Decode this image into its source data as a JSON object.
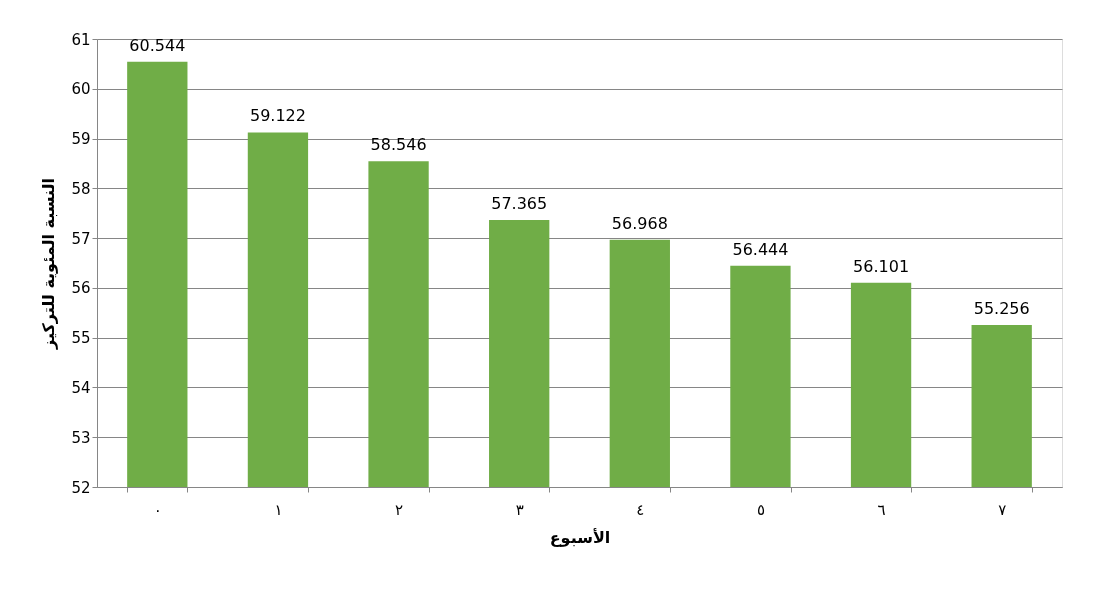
{
  "chart_data": {
    "type": "bar",
    "xlabel": "الأسبوع",
    "ylabel": "النسبة المئوية للتركيز",
    "categories": [
      "٠",
      "١",
      "٢",
      "٣",
      "٤",
      "٥",
      "٦",
      "٧"
    ],
    "values": [
      60.544,
      59.122,
      58.546,
      57.365,
      56.968,
      56.444,
      56.101,
      55.256
    ],
    "color": "#70ad47",
    "ylim": [
      52,
      61
    ],
    "yticks": [
      52,
      53,
      54,
      55,
      56,
      57,
      58,
      59,
      60,
      61
    ],
    "grid": "y",
    "data_labels": true
  }
}
